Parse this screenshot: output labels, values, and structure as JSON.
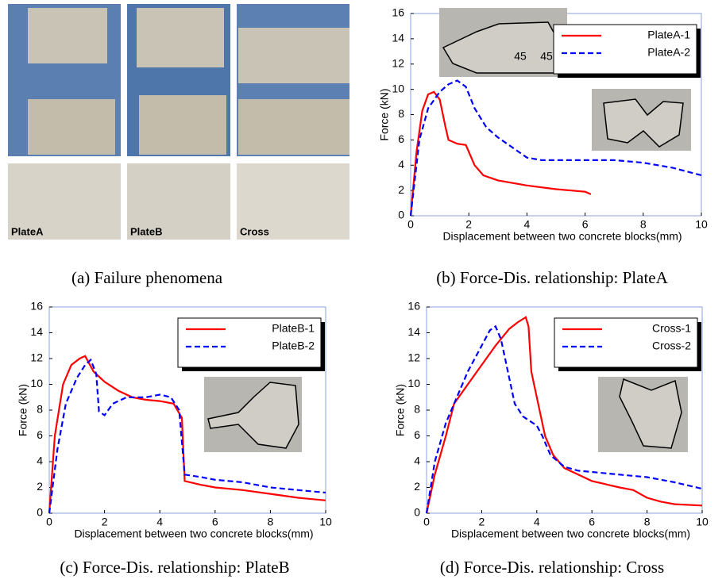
{
  "photo_panel": {
    "labels": [
      "PlateA",
      "PlateB",
      "Cross"
    ],
    "caption": "(a) Failure phenomena"
  },
  "chart_data": [
    {
      "type": "line",
      "caption": "(b) Force-Dis. relationship: PlateA",
      "xlabel": "Displacement between two concrete blocks(mm)",
      "ylabel": "Force (kN)",
      "annotations": [
        "45",
        "45"
      ],
      "xlim": [
        0,
        10
      ],
      "xticks": [
        0,
        2,
        4,
        6,
        8,
        10
      ],
      "ylim": [
        0,
        16
      ],
      "yticks": [
        0,
        2,
        4,
        6,
        8,
        10,
        12,
        14,
        16
      ],
      "legend": "upper right",
      "series": [
        {
          "name": "PlateA-1",
          "color": "#ff0000",
          "style": "solid",
          "x": [
            0,
            0.2,
            0.4,
            0.6,
            0.8,
            1.0,
            1.2,
            1.3,
            1.6,
            1.9,
            2.2,
            2.5,
            3,
            4,
            5,
            6,
            6.2
          ],
          "values": [
            0,
            5,
            8.3,
            9.6,
            9.8,
            9.2,
            7,
            6,
            5.7,
            5.6,
            4,
            3.2,
            2.8,
            2.4,
            2.1,
            1.9,
            1.7
          ]
        },
        {
          "name": "PlateA-2",
          "color": "#0000ff",
          "style": "dashed",
          "x": [
            0,
            0.3,
            0.6,
            1,
            1.3,
            1.6,
            1.9,
            2.2,
            2.6,
            3,
            3.5,
            4,
            4.5,
            5,
            6,
            7,
            8,
            8.5,
            9,
            9.5,
            10
          ],
          "values": [
            0,
            6,
            8.5,
            9.8,
            10.4,
            10.7,
            10.2,
            8.5,
            7,
            6.2,
            5.4,
            4.6,
            4.4,
            4.4,
            4.4,
            4.4,
            4.2,
            4.0,
            3.8,
            3.5,
            3.2
          ]
        }
      ]
    },
    {
      "type": "line",
      "caption": "(c) Force-Dis. relationship: PlateB",
      "xlabel": "Displacement between two concrete blocks(mm)",
      "ylabel": "Force (kN)",
      "xlim": [
        0,
        10
      ],
      "xticks": [
        0,
        2,
        4,
        6,
        8,
        10
      ],
      "ylim": [
        0,
        16
      ],
      "yticks": [
        0,
        2,
        4,
        6,
        8,
        10,
        12,
        14,
        16
      ],
      "legend": "upper right",
      "series": [
        {
          "name": "PlateB-1",
          "color": "#ff0000",
          "style": "solid",
          "x": [
            0,
            0.2,
            0.5,
            0.8,
            1.1,
            1.3,
            1.6,
            2,
            2.5,
            3,
            3.5,
            4,
            4.5,
            4.8,
            4.9,
            5.5,
            6,
            7,
            8,
            9,
            10
          ],
          "values": [
            0,
            6,
            10,
            11.5,
            12,
            12.2,
            11,
            10.2,
            9.5,
            9,
            8.8,
            8.7,
            8.5,
            7.4,
            2.5,
            2.2,
            2.0,
            1.8,
            1.5,
            1.2,
            1.0
          ]
        },
        {
          "name": "PlateB-2",
          "color": "#0000ff",
          "style": "dashed",
          "x": [
            0,
            0.3,
            0.6,
            1,
            1.3,
            1.5,
            1.7,
            1.8,
            2,
            2.3,
            2.8,
            3.5,
            4,
            4.4,
            4.7,
            4.9,
            5.5,
            6,
            7,
            8,
            9,
            10
          ],
          "values": [
            0,
            5,
            8.5,
            10.5,
            11.5,
            11.9,
            10.8,
            7.9,
            7.6,
            8.5,
            9,
            9,
            9.2,
            9,
            8,
            3,
            2.8,
            2.6,
            2.4,
            2.0,
            1.8,
            1.6
          ]
        }
      ]
    },
    {
      "type": "line",
      "caption": "(d) Force-Dis. relationship: Cross",
      "xlabel": "Displacement between two concrete blocks(mm)",
      "ylabel": "Force (kN)",
      "xlim": [
        0,
        10
      ],
      "xticks": [
        0,
        2,
        4,
        6,
        8,
        10
      ],
      "ylim": [
        0,
        16
      ],
      "yticks": [
        0,
        2,
        4,
        6,
        8,
        10,
        12,
        14,
        16
      ],
      "legend": "upper right",
      "series": [
        {
          "name": "Cross-1",
          "color": "#ff0000",
          "style": "solid",
          "x": [
            0,
            0.3,
            0.7,
            1,
            1.5,
            2,
            2.5,
            3,
            3.3,
            3.6,
            3.7,
            3.8,
            4,
            4.3,
            4.6,
            5,
            5.5,
            6,
            7,
            7.5,
            8,
            8.5,
            9,
            10
          ],
          "values": [
            0,
            3,
            6,
            8.5,
            10,
            11.5,
            13,
            14.3,
            14.8,
            15.2,
            14.5,
            11,
            9,
            6,
            4.5,
            3.5,
            3,
            2.5,
            2,
            1.8,
            1.2,
            0.9,
            0.7,
            0.6
          ]
        },
        {
          "name": "Cross-2",
          "color": "#0000ff",
          "style": "dashed",
          "x": [
            0,
            0.3,
            0.7,
            1,
            1.5,
            2,
            2.3,
            2.5,
            2.7,
            3,
            3.2,
            3.5,
            4,
            4.2,
            4.5,
            5,
            5.5,
            6,
            7,
            8,
            9,
            10
          ],
          "values": [
            0,
            4,
            7,
            8.5,
            11,
            13,
            14.2,
            14.5,
            13.5,
            10.5,
            8.5,
            7.5,
            6.8,
            6,
            4.5,
            3.6,
            3.3,
            3.2,
            3.0,
            2.8,
            2.4,
            1.9
          ]
        }
      ]
    }
  ]
}
